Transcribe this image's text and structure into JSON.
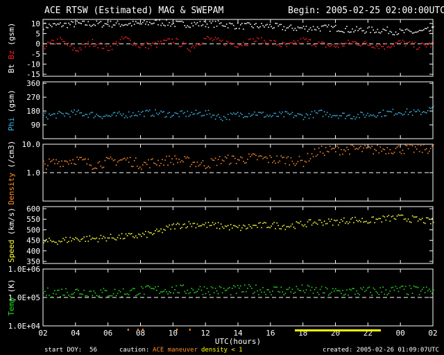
{
  "header": {
    "title": "ACE RTSW (Estimated) MAG & SWEPAM",
    "begin": "Begin: 2005-02-25 02:00:00UTC"
  },
  "footer": {
    "start_doy": "start DOY:  56",
    "caution": "caution:",
    "maneuver": "ACE maneuver",
    "density_note": "density < 1",
    "created": "created: 2005-02-26 01:09:07UTC"
  },
  "colors": {
    "bt": "#ffffff",
    "bz": "#ff2020",
    "phi": "#3cb4e6",
    "density": "#ff8c28",
    "speed": "#ffff3c",
    "temp": "#28dc28",
    "maneuver": "#ff8c28",
    "density_lt1": "#ffff00"
  },
  "chart_data": {
    "type": "scatter",
    "x_axis": {
      "label": "UTC(hours)",
      "range_hours": [
        0,
        24
      ],
      "tick_labels": [
        "02",
        "04",
        "06",
        "08",
        "10",
        "12",
        "14",
        "16",
        "18",
        "20",
        "22",
        "00",
        "02"
      ]
    },
    "panels": [
      {
        "key": "mag",
        "ylabel_parts": [
          {
            "text": "Bt",
            "color": "#ffffff"
          },
          {
            "text": " Bz",
            "color": "#ff2020"
          },
          {
            "text": " (gsm)",
            "color": "#ffffff"
          }
        ],
        "ylim": [
          -16,
          12
        ],
        "ticks": [
          -15,
          -10,
          -5,
          0,
          5,
          10
        ],
        "tick_labels": [
          "-15",
          "-10",
          "-5",
          "0",
          "5",
          "10"
        ],
        "dashed_at": 0,
        "log": false,
        "series": [
          {
            "name": "Bt",
            "color": "#ffffff",
            "x": [
              0,
              1,
              2,
              3,
              4,
              5,
              6,
              7,
              8,
              9,
              10,
              11,
              12,
              13,
              14,
              15,
              16,
              17,
              18,
              19,
              20,
              21,
              22,
              23,
              24
            ],
            "y": [
              9,
              9.5,
              10,
              10,
              10,
              10,
              10,
              11,
              10,
              10,
              10,
              10,
              9,
              9,
              9,
              8,
              8,
              8,
              8,
              7,
              7,
              7,
              6,
              6,
              7
            ]
          },
          {
            "name": "Bz",
            "color": "#ff2020",
            "x": [
              0,
              1,
              2,
              3,
              4,
              5,
              6,
              7,
              8,
              9,
              10,
              11,
              12,
              13,
              14,
              15,
              16,
              17,
              18,
              19,
              20,
              21,
              22,
              23,
              24
            ],
            "y": [
              -1,
              2,
              -3,
              1,
              -2,
              3,
              -1,
              0,
              2,
              -2,
              3,
              1,
              0,
              2,
              1,
              -1,
              2,
              0,
              -1,
              1,
              0,
              -1,
              1,
              -1,
              0
            ]
          }
        ]
      },
      {
        "key": "phi",
        "ylabel_parts": [
          {
            "text": "Phi",
            "color": "#3cb4e6"
          },
          {
            "text": " (gsm)",
            "color": "#ffffff"
          }
        ],
        "ylim": [
          0,
          370
        ],
        "ticks": [
          90,
          180,
          270,
          360
        ],
        "tick_labels": [
          "90",
          "180",
          "270",
          "360"
        ],
        "dashed_at": null,
        "log": false,
        "series": [
          {
            "name": "Phi",
            "color": "#3cb4e6",
            "x": [
              0,
              1,
              2,
              3,
              4,
              5,
              6,
              7,
              8,
              9,
              10,
              11,
              12,
              13,
              14,
              15,
              16,
              17,
              18,
              19,
              20,
              21,
              22,
              23,
              24
            ],
            "y": [
              150,
              160,
              170,
              160,
              150,
              160,
              170,
              170,
              160,
              165,
              170,
              140,
              160,
              170,
              150,
              160,
              150,
              170,
              160,
              150,
              160,
              170,
              180,
              170,
              200
            ]
          }
        ]
      },
      {
        "key": "density",
        "ylabel_parts": [
          {
            "text": "Density",
            "color": "#ff8c28"
          },
          {
            "text": " (/cm3)",
            "color": "#ffffff"
          }
        ],
        "ylim": [
          0.1,
          10
        ],
        "ticks": [
          1,
          10
        ],
        "tick_labels": [
          "1.0",
          "10.0"
        ],
        "dashed_at": 1,
        "log": true,
        "series": [
          {
            "name": "Density",
            "color": "#ff8c28",
            "x": [
              0,
              1,
              2,
              3,
              4,
              5,
              6,
              7,
              8,
              9,
              10,
              11,
              12,
              13,
              14,
              15,
              16,
              17,
              18,
              19,
              20,
              21,
              22,
              23,
              24
            ],
            "y": [
              2,
              2.5,
              3,
              2,
              2.5,
              3,
              2,
              2.5,
              3,
              2.5,
              2,
              3,
              3,
              3.5,
              3,
              3,
              2.5,
              6,
              6.5,
              7,
              6.5,
              7,
              7,
              7,
              7.5
            ]
          }
        ]
      },
      {
        "key": "speed",
        "ylabel_parts": [
          {
            "text": "Speed",
            "color": "#ffff3c"
          },
          {
            "text": " (km/s)",
            "color": "#ffffff"
          }
        ],
        "ylim": [
          340,
          610
        ],
        "ticks": [
          350,
          400,
          450,
          500,
          550,
          600
        ],
        "tick_labels": [
          "350",
          "400",
          "450",
          "500",
          "550",
          "600"
        ],
        "dashed_at": null,
        "log": false,
        "series": [
          {
            "name": "Speed",
            "color": "#ffff3c",
            "x": [
              0,
              1,
              2,
              3,
              4,
              5,
              6,
              7,
              8,
              9,
              10,
              11,
              12,
              13,
              14,
              15,
              16,
              17,
              18,
              19,
              20,
              21,
              22,
              23,
              24
            ],
            "y": [
              445,
              450,
              460,
              460,
              465,
              470,
              475,
              490,
              520,
              530,
              525,
              520,
              510,
              520,
              525,
              520,
              530,
              540,
              540,
              550,
              545,
              555,
              560,
              550,
              540
            ]
          }
        ]
      },
      {
        "key": "temp",
        "ylabel_parts": [
          {
            "text": "Temp",
            "color": "#28dc28"
          },
          {
            "text": " (K)",
            "color": "#ffffff"
          }
        ],
        "ylim": [
          10000,
          1000000
        ],
        "ticks": [
          10000,
          100000,
          1000000
        ],
        "tick_labels": [
          "1.0E+04",
          "1.0E+05",
          "1.0E+06"
        ],
        "dashed_at": 100000,
        "log": true,
        "series": [
          {
            "name": "Temp",
            "color": "#28dc28",
            "x": [
              0,
              1,
              2,
              3,
              4,
              5,
              6,
              7,
              8,
              9,
              10,
              11,
              12,
              13,
              14,
              15,
              16,
              17,
              18,
              19,
              20,
              21,
              22,
              23,
              24
            ],
            "y": [
              150000,
              160000,
              170000,
              160000,
              150000,
              160000,
              180000,
              190000,
              200000,
              190000,
              200000,
              180000,
              190000,
              200000,
              190000,
              180000,
              200000,
              170000,
              160000,
              170000,
              170000,
              180000,
              190000,
              180000,
              170000
            ]
          }
        ]
      }
    ]
  }
}
